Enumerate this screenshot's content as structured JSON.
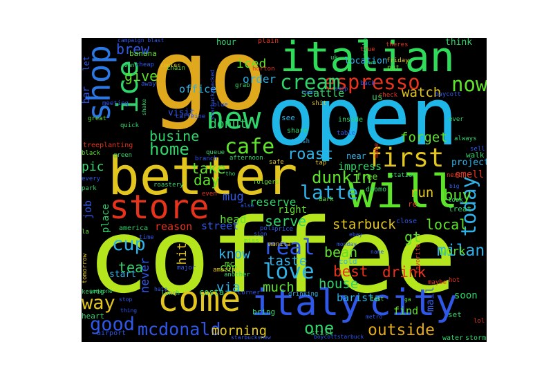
{
  "words": [
    {
      "text": "coffee",
      "color": "#b5e61d"
    },
    {
      "text": "open",
      "color": "#1fb6e8"
    },
    {
      "text": "go",
      "color": "#e0a81c"
    },
    {
      "text": "better",
      "color": "#e2c51e"
    },
    {
      "text": "italian",
      "color": "#2fdc5a"
    },
    {
      "text": "will",
      "color": "#5fe22a"
    },
    {
      "text": "italy",
      "color": "#2f58e8"
    },
    {
      "text": "city",
      "color": "#2f58e8"
    },
    {
      "text": "store",
      "color": "#e8331c"
    },
    {
      "text": "come",
      "color": "#e2c51e"
    },
    {
      "text": "shop",
      "color": "#2b78e4"
    },
    {
      "text": "ice",
      "color": "#2fd56b"
    },
    {
      "text": "new",
      "color": "#2fd56b"
    },
    {
      "text": "first",
      "color": "#e2c51e"
    },
    {
      "text": "espresso",
      "color": "#e8331c"
    },
    {
      "text": "now",
      "color": "#5fe22a"
    },
    {
      "text": "cream",
      "color": "#2fd56b"
    },
    {
      "text": "cafe",
      "color": "#5fe22a"
    },
    {
      "text": "home",
      "color": "#2fd56b"
    },
    {
      "text": "dunkin",
      "color": "#5fe22a"
    },
    {
      "text": "latte",
      "color": "#2fb2e8"
    },
    {
      "text": "today",
      "color": "#2fb2e8"
    },
    {
      "text": "love",
      "color": "#2fb2e8"
    },
    {
      "text": "real",
      "color": "#2f58e8"
    },
    {
      "text": "cup",
      "color": "#2fb2e8"
    },
    {
      "text": "mcdonald",
      "color": "#2f58e8"
    },
    {
      "text": "way",
      "color": "#e2c51e"
    },
    {
      "text": "good",
      "color": "#2f58e8"
    },
    {
      "text": "outside",
      "color": "#e0a81c"
    },
    {
      "text": "milan",
      "color": "#2fb2e8"
    },
    {
      "text": "bean",
      "color": "#5fe22a"
    },
    {
      "text": "starbuck",
      "color": "#e2c51e"
    },
    {
      "text": "best",
      "color": "#e8331c"
    },
    {
      "text": "drink",
      "color": "#e8331c"
    },
    {
      "text": "house",
      "color": "#2fd56b"
    },
    {
      "text": "morning",
      "color": "#e2c51e"
    },
    {
      "text": "one",
      "color": "#2fd56b"
    },
    {
      "text": "much",
      "color": "#5fe22a"
    },
    {
      "text": "taste",
      "color": "#2fb2e8"
    },
    {
      "text": "serve",
      "color": "#2fd56b"
    },
    {
      "text": "local",
      "color": "#5fe22a"
    },
    {
      "text": "buy",
      "color": "#5fe22a"
    },
    {
      "text": "brew",
      "color": "#2f58e8"
    },
    {
      "text": "give",
      "color": "#5fe22a"
    },
    {
      "text": "donut",
      "color": "#2fd56b"
    },
    {
      "text": "roast",
      "color": "#2fb2e8"
    },
    {
      "text": "watch",
      "color": "#e2c51e"
    },
    {
      "text": "busine",
      "color": "#2fd56b"
    },
    {
      "text": "take",
      "color": "#5fe22a"
    },
    {
      "text": "day",
      "color": "#5fe22a"
    },
    {
      "text": "tea",
      "color": "#2fd56b"
    },
    {
      "text": "via",
      "color": "#2fb2e8"
    },
    {
      "text": "know",
      "color": "#2fb2e8"
    },
    {
      "text": "gt",
      "color": "#5fe22a"
    },
    {
      "text": "reserve",
      "color": "#2fd56b"
    },
    {
      "text": "iced",
      "color": "#5fe22a"
    },
    {
      "text": "order",
      "color": "#2fb2e8"
    },
    {
      "text": "office",
      "color": "#2fb2e8"
    },
    {
      "text": "pic",
      "color": "#2fd56b"
    },
    {
      "text": "forget",
      "color": "#5fe22a"
    },
    {
      "text": "run",
      "color": "#e2c51e"
    },
    {
      "text": "mug",
      "color": "#2f58e8"
    },
    {
      "text": "head",
      "color": "#5fe22a"
    },
    {
      "text": "street",
      "color": "#2f58e8"
    },
    {
      "text": "reason",
      "color": "#e8331c"
    },
    {
      "text": "hit",
      "color": "#e2c51e"
    },
    {
      "text": "never",
      "color": "#2f58e8"
    },
    {
      "text": "work",
      "color": "#5fe22a"
    },
    {
      "text": "barista",
      "color": "#2fb2e8"
    },
    {
      "text": "find",
      "color": "#5fe22a"
    },
    {
      "text": "soon",
      "color": "#2fd56b"
    },
    {
      "text": "seattle",
      "color": "#2fd56b"
    },
    {
      "text": "location",
      "color": "#2fb2e8"
    },
    {
      "text": "impress",
      "color": "#2fd56b"
    },
    {
      "text": "job",
      "color": "#2f58e8"
    },
    {
      "text": "place",
      "color": "#2fd56b"
    },
    {
      "text": "cop",
      "color": "#5fe22a"
    },
    {
      "text": "start",
      "color": "#2fb2e8"
    },
    {
      "text": "right",
      "color": "#5fe22a"
    },
    {
      "text": "free",
      "color": "#5fe22a"
    },
    {
      "text": "near",
      "color": "#2fb2e8"
    },
    {
      "text": "visit",
      "color": "#2f58e8"
    },
    {
      "text": "project",
      "color": "#2fb2e8"
    },
    {
      "text": "smell",
      "color": "#e8331c"
    },
    {
      "text": "treat",
      "color": "#2fd56b"
    },
    {
      "text": "think",
      "color": "#2fd56b"
    },
    {
      "text": "bar",
      "color": "#2f58e8"
    },
    {
      "text": "let",
      "color": "#2f58e8"
    },
    {
      "text": "hour",
      "color": "#2fd56b"
    },
    {
      "text": "banana",
      "color": "#5fe22a"
    },
    {
      "text": "us",
      "color": "#2fd56b"
    },
    {
      "text": "mail",
      "color": "#2f58e8"
    },
    {
      "text": "costa",
      "color": "#2fd56b"
    },
    {
      "text": "mc",
      "color": "#5fe22a"
    },
    {
      "text": "cold",
      "color": "#2fb2e8"
    },
    {
      "text": "bring",
      "color": "#2fd56b"
    },
    {
      "text": "still",
      "color": "#2fd56b"
    },
    {
      "text": "heart",
      "color": "#2fd56b"
    },
    {
      "text": "set",
      "color": "#2fd56b"
    },
    {
      "text": "water",
      "color": "#2fd56b"
    },
    {
      "text": "storm",
      "color": "#2fd56b"
    },
    {
      "text": "airport",
      "color": "#2f58e8"
    },
    {
      "text": "america",
      "color": "#2fd56b"
    },
    {
      "text": "station",
      "color": "#2fd56b"
    },
    {
      "text": "duomo",
      "color": "#2fd56b"
    },
    {
      "text": "walk",
      "color": "#2fd56b"
    },
    {
      "text": "plain",
      "color": "#e8331c"
    },
    {
      "text": "true",
      "color": "#e8331c"
    },
    {
      "text": "friday",
      "color": "#e2c51e"
    },
    {
      "text": "put",
      "color": "#5fe22a"
    },
    {
      "text": "uk",
      "color": "#2fd56b"
    },
    {
      "text": "theres",
      "color": "#e8331c"
    },
    {
      "text": "campaign blast",
      "color": "#2f58e8"
    },
    {
      "text": "treeplanting",
      "color": "#e8331c"
    },
    {
      "text": "green",
      "color": "#2fd56b"
    },
    {
      "text": "black",
      "color": "#5fe22a"
    },
    {
      "text": "roastery",
      "color": "#2fd56b"
    },
    {
      "text": "folgers",
      "color": "#5fe22a"
    },
    {
      "text": "park",
      "color": "#2fd56b"
    },
    {
      "text": "every",
      "color": "#2f58e8"
    },
    {
      "text": "manila",
      "color": "#e2c51e"
    },
    {
      "text": "monday",
      "color": "#2f58e8"
    },
    {
      "text": "starbucksbacked",
      "color": "#2f58e8"
    },
    {
      "text": "keurig",
      "color": "#2fd56b"
    },
    {
      "text": "tomorrow",
      "color": "#e2c51e"
    },
    {
      "text": "la",
      "color": "#5fe22a"
    },
    {
      "text": "meeting",
      "color": "#2f58e8"
    },
    {
      "text": "great",
      "color": "#5fe22a"
    },
    {
      "text": "lunch",
      "color": "#2fd56b"
    },
    {
      "text": "ebay",
      "color": "#2f58e8"
    },
    {
      "text": "name",
      "color": "#2f58e8"
    },
    {
      "text": "maybe",
      "color": "#e8331c"
    },
    {
      "text": "hot",
      "color": "#e8331c"
    },
    {
      "text": "lol",
      "color": "#e8331c"
    },
    {
      "text": "metro",
      "color": "#2f58e8"
    },
    {
      "text": "test",
      "color": "#5fe22a"
    },
    {
      "text": "ga",
      "color": "#5fe22a"
    },
    {
      "text": "chain",
      "color": "#5fe22a"
    },
    {
      "text": "horton",
      "color": "#e8331c"
    },
    {
      "text": "blue",
      "color": "#2f58e8"
    },
    {
      "text": "grab",
      "color": "#2fd56b"
    },
    {
      "text": "skip",
      "color": "#2f58e8"
    },
    {
      "text": "town",
      "color": "#2f58e8"
    },
    {
      "text": "baycott",
      "color": "#2f58e8"
    },
    {
      "text": "check",
      "color": "#e8331c"
    },
    {
      "text": "shit",
      "color": "#e2c51e"
    },
    {
      "text": "share",
      "color": "#2fd56b"
    },
    {
      "text": "see",
      "color": "#2fb2e8"
    },
    {
      "text": "inside",
      "color": "#2fd56b"
    },
    {
      "text": "table",
      "color": "#2f58e8"
    },
    {
      "text": "trash",
      "color": "#2fb2e8"
    },
    {
      "text": "next",
      "color": "#e8331c"
    },
    {
      "text": "big",
      "color": "#2f58e8"
    },
    {
      "text": "sell",
      "color": "#2f58e8"
    },
    {
      "text": "always",
      "color": "#2fd56b"
    },
    {
      "text": "ever",
      "color": "#2fd56b"
    },
    {
      "text": "look",
      "color": "#2fd56b"
    },
    {
      "text": "tap",
      "color": "#e2c51e"
    },
    {
      "text": "dark",
      "color": "#5fe22a"
    },
    {
      "text": "close",
      "color": "#2f58e8"
    },
    {
      "text": "price",
      "color": "#2f58e8"
    },
    {
      "text": "sign",
      "color": "#2f58e8"
    },
    {
      "text": "miss",
      "color": "#5fe22a"
    },
    {
      "text": "another",
      "color": "#2fd56b"
    },
    {
      "text": "drinking",
      "color": "#2fb2e8"
    },
    {
      "text": "corner",
      "color": "#2f58e8"
    },
    {
      "text": "amazing",
      "color": "#e2c51e"
    },
    {
      "text": "someone",
      "color": "#2fd56b"
    },
    {
      "text": "stop",
      "color": "#2f58e8"
    },
    {
      "text": "thing",
      "color": "#2f58e8"
    },
    {
      "text": "starbucksnew",
      "color": "#2f58e8"
    },
    {
      "text": "boycottstarbuck",
      "color": "#2f58e8"
    },
    {
      "text": "center",
      "color": "#e2c51e"
    },
    {
      "text": "away",
      "color": "#2f58e8"
    },
    {
      "text": "cheap",
      "color": "#2f58e8"
    },
    {
      "text": "want",
      "color": "#2fd56b"
    },
    {
      "text": "shake",
      "color": "#2fd56b"
    },
    {
      "text": "caffeine",
      "color": "#2f58e8"
    },
    {
      "text": "quick",
      "color": "#2fd56b"
    },
    {
      "text": "afternoon",
      "color": "#2fd56b"
    },
    {
      "text": "branch",
      "color": "#2f58e8"
    },
    {
      "text": "safe",
      "color": "#e2c51e"
    },
    {
      "text": "even",
      "color": "#e8331c"
    },
    {
      "text": "also",
      "color": "#2f58e8"
    },
    {
      "text": "tho",
      "color": "#2fd56b"
    },
    {
      "text": "back",
      "color": "#2f58e8"
    },
    {
      "text": "favorite",
      "color": "#e8331c"
    },
    {
      "text": "combo",
      "color": "#2fd56b"
    },
    {
      "text": "two",
      "color": "#2fd56b"
    },
    {
      "text": "major",
      "color": "#2f58e8"
    },
    {
      "text": "hate",
      "color": "#2f58e8"
    },
    {
      "text": "time",
      "color": "#2f58e8"
    },
    {
      "text": "make",
      "color": "#e8331c"
    },
    {
      "text": "re",
      "color": "#e8331c"
    },
    {
      "text": "poli",
      "color": "#2f58e8"
    },
    {
      "text": "queue",
      "color": "#2fd56b"
    }
  ]
}
